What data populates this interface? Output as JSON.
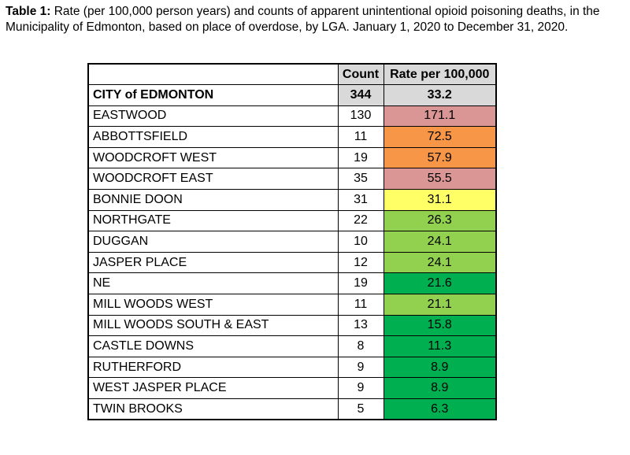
{
  "caption": {
    "label": "Table 1:",
    "text": "Rate (per 100,000 person years) and counts of apparent unintentional opioid poisoning deaths, in the Municipality of Edmonton, based on place of overdose, by LGA. January 1, 2020 to December 31, 2020."
  },
  "table": {
    "headers": [
      "",
      "Count",
      "Rate per 100,000"
    ],
    "total_row": {
      "name": "CITY of EDMONTON",
      "count": "344",
      "rate": "33.2"
    },
    "rows": [
      {
        "name": "EASTWOOD",
        "count": "130",
        "rate": "171.1",
        "color": "#da9694"
      },
      {
        "name": "ABBOTTSFIELD",
        "count": "11",
        "rate": "72.5",
        "color": "#f79646"
      },
      {
        "name": "WOODCROFT WEST",
        "count": "19",
        "rate": "57.9",
        "color": "#f79646"
      },
      {
        "name": "WOODCROFT EAST",
        "count": "35",
        "rate": "55.5",
        "color": "#da9694"
      },
      {
        "name": "BONNIE DOON",
        "count": "31",
        "rate": "31.1",
        "color": "#ffff66"
      },
      {
        "name": "NORTHGATE",
        "count": "22",
        "rate": "26.3",
        "color": "#92d050"
      },
      {
        "name": "DUGGAN",
        "count": "10",
        "rate": "24.1",
        "color": "#92d050"
      },
      {
        "name": "JASPER PLACE",
        "count": "12",
        "rate": "24.1",
        "color": "#92d050"
      },
      {
        "name": "NE",
        "count": "19",
        "rate": "21.6",
        "color": "#00b050"
      },
      {
        "name": "MILL WOODS WEST",
        "count": "11",
        "rate": "21.1",
        "color": "#92d050"
      },
      {
        "name": "MILL WOODS SOUTH & EAST",
        "count": "13",
        "rate": "15.8",
        "color": "#00b050"
      },
      {
        "name": "CASTLE DOWNS",
        "count": "8",
        "rate": "11.3",
        "color": "#00b050"
      },
      {
        "name": "RUTHERFORD",
        "count": "9",
        "rate": "8.9",
        "color": "#00b050"
      },
      {
        "name": "WEST JASPER PLACE",
        "count": "9",
        "rate": "8.9",
        "color": "#00b050"
      },
      {
        "name": "TWIN BROOKS",
        "count": "5",
        "rate": "6.3",
        "color": "#00b050"
      }
    ]
  }
}
